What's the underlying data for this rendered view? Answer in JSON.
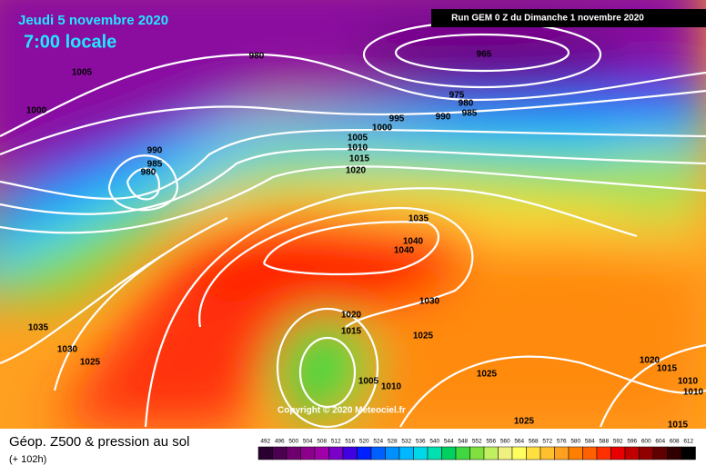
{
  "header": {
    "date": "Jeudi 5 novembre 2020",
    "time": "7:00 locale",
    "run": "Run GEM 0 Z du Dimanche 1 novembre 2020"
  },
  "map": {
    "copyright": "Copyright © 2020 Meteociel.fr",
    "isobar_labels": [
      1005,
      1000,
      980,
      965,
      975,
      980,
      985,
      990,
      995,
      1000,
      990,
      985,
      980,
      1005,
      1010,
      1015,
      1020,
      1035,
      1040,
      1040,
      1030,
      1020,
      1015,
      1025,
      1005,
      1010,
      1025,
      1025,
      1035,
      1030,
      1025,
      1020,
      1015,
      1010,
      1010,
      1015
    ]
  },
  "footer": {
    "title": "Géop. Z500 & pression au sol",
    "lead": "(+ 102h)"
  },
  "colorbar": {
    "ticks": [
      492,
      496,
      500,
      504,
      508,
      512,
      516,
      520,
      524,
      528,
      532,
      536,
      540,
      544,
      548,
      552,
      556,
      560,
      564,
      568,
      572,
      576,
      580,
      584,
      588,
      592,
      596,
      600,
      604,
      608,
      612
    ],
    "colors": [
      "#2a0030",
      "#4b0050",
      "#6e006e",
      "#8c008c",
      "#a000a8",
      "#7a00c8",
      "#4000e0",
      "#0020ff",
      "#0060ff",
      "#0090ff",
      "#00b8ff",
      "#00d8e8",
      "#00e0b0",
      "#00d060",
      "#40d840",
      "#80e040",
      "#c0f060",
      "#f0f080",
      "#ffff60",
      "#ffe040",
      "#ffc030",
      "#ffa020",
      "#ff8000",
      "#ff6000",
      "#ff3000",
      "#e80000",
      "#c00000",
      "#900000",
      "#600000",
      "#300000",
      "#000000"
    ]
  }
}
